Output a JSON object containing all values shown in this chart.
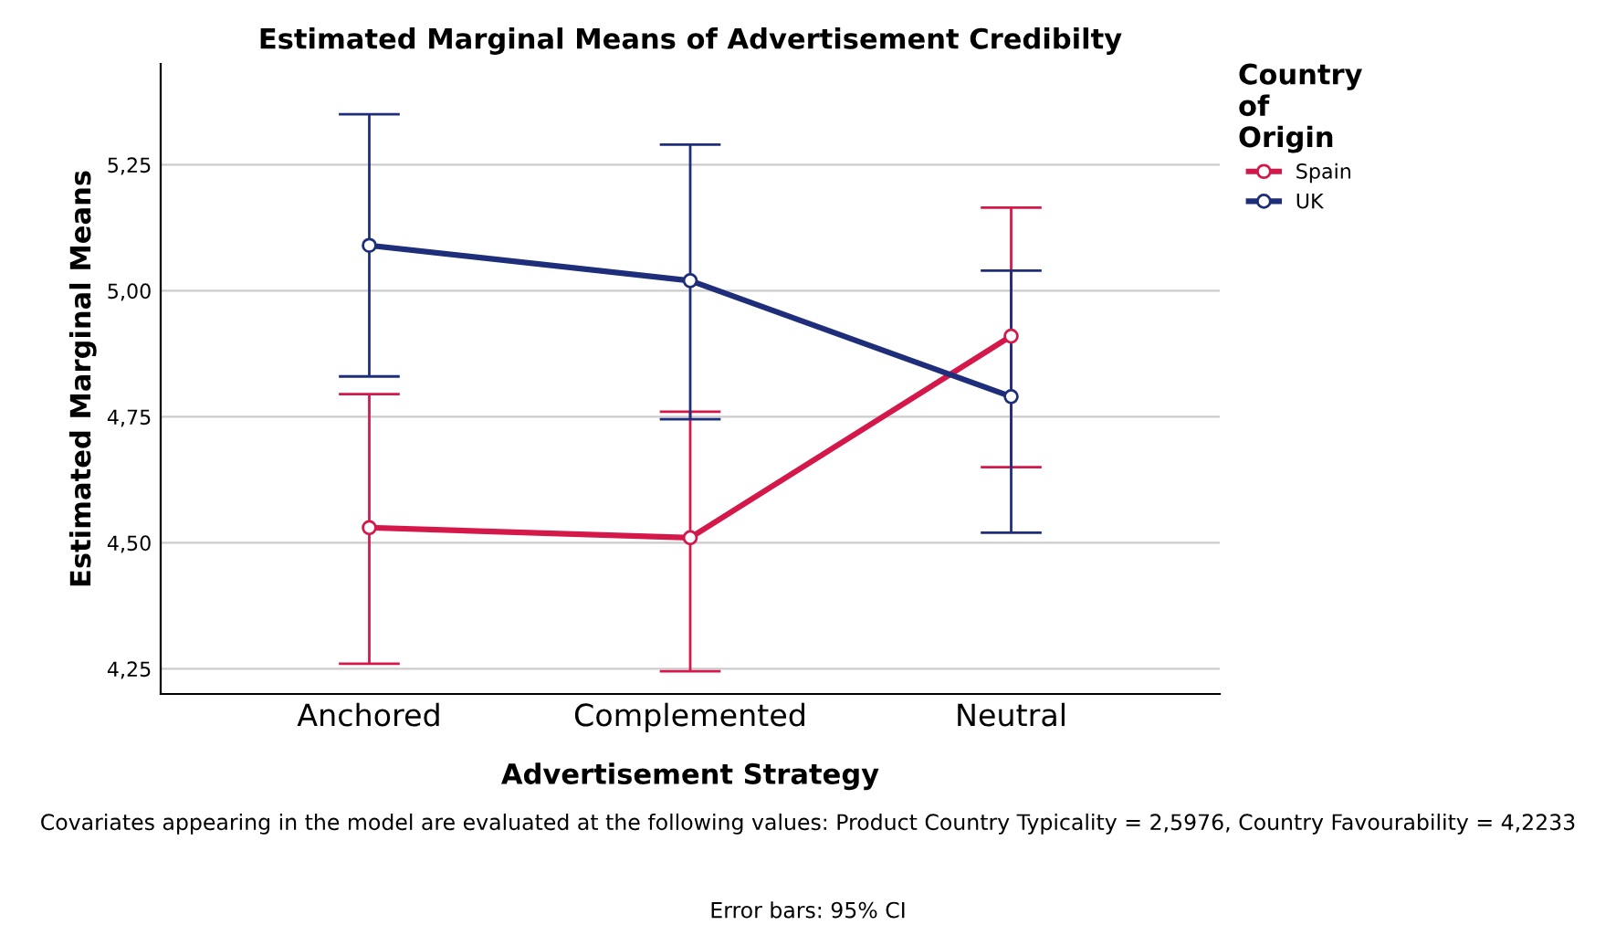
{
  "chart_data": {
    "type": "line",
    "title": "Estimated Marginal Means of Advertisement Credibilty",
    "xlabel": "Advertisement Strategy",
    "ylabel": "Estimated Marginal Means",
    "legend_title": "Country\nof\nOrigin",
    "categories": [
      "Anchored",
      "Complemented",
      "Neutral"
    ],
    "series": [
      {
        "name": "Spain",
        "color": "#d5184a",
        "values": [
          4.53,
          4.51,
          4.91
        ],
        "errors": [
          [
            4.26,
            4.795
          ],
          [
            4.245,
            4.76
          ],
          [
            4.65,
            5.165
          ]
        ]
      },
      {
        "name": "UK",
        "color": "#1f2e7a",
        "values": [
          5.09,
          5.02,
          4.79
        ],
        "errors": [
          [
            4.83,
            5.35
          ],
          [
            4.745,
            5.29
          ],
          [
            4.52,
            5.04
          ]
        ]
      }
    ],
    "ylim": [
      4.2,
      5.45
    ],
    "yticks": [
      {
        "value": 4.25,
        "label": "4,25"
      },
      {
        "value": 4.5,
        "label": "4,50"
      },
      {
        "value": 4.75,
        "label": "4,75"
      },
      {
        "value": 5.0,
        "label": "5,00"
      },
      {
        "value": 5.25,
        "label": "5,25"
      }
    ],
    "grid": "y",
    "legend": "top right",
    "marker": "circle",
    "annotations": [
      "Covariates appearing in the model are evaluated at the following values: Product Country Typicality = 2,5976, Country Favourability = 4,2233",
      "Error bars: 95% CI"
    ]
  }
}
